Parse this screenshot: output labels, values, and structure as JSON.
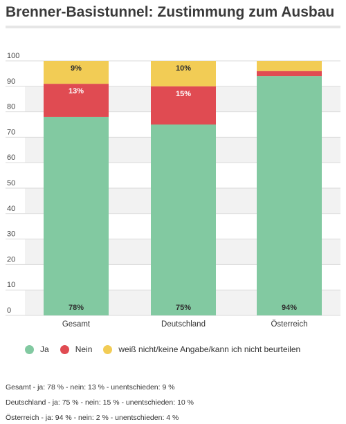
{
  "title": "Brenner-Basistunnel: Zustimmung zum Ausbau",
  "colors": {
    "ja": "#82c9a1",
    "nein": "#e04b52",
    "unentschieden": "#f2cc55",
    "grid": "#d9d9d9",
    "band": "#f2f2f2"
  },
  "legend": [
    {
      "label": "Ja",
      "color": "#82c9a1"
    },
    {
      "label": "Nein",
      "color": "#e04b52"
    },
    {
      "label": "weiß nicht/keine Angabe/kann ich nicht beurteilen",
      "color": "#f2cc55"
    }
  ],
  "chart_data": {
    "type": "bar",
    "stacked": true,
    "categories": [
      "Gesamt",
      "Deutschland",
      "Österreich"
    ],
    "series": [
      {
        "name": "Ja",
        "values": [
          78,
          75,
          94
        ],
        "labels": [
          "78%",
          "75%",
          "94%"
        ]
      },
      {
        "name": "Nein",
        "values": [
          13,
          15,
          2
        ],
        "labels": [
          "13%",
          "15%",
          ""
        ]
      },
      {
        "name": "weiß nicht/keine Angabe/kann ich nicht beurteilen",
        "values": [
          9,
          10,
          4
        ],
        "labels": [
          "9%",
          "10%",
          ""
        ]
      }
    ],
    "ylim": [
      0,
      100
    ],
    "yticks": [
      0,
      10,
      20,
      30,
      40,
      50,
      60,
      70,
      80,
      90,
      100
    ],
    "grid": true
  },
  "footnotes": [
    "Gesamt - ja: 78 % - nein: 13 % - unentschieden: 9 %",
    "Deutschland - ja: 75 % - nein: 15 % - unentschieden: 10 %",
    "Österreich - ja: 94 % - nein: 2 % - unentschieden: 4 %"
  ]
}
